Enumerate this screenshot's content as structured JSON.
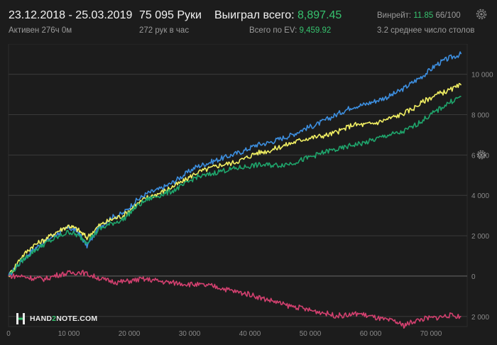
{
  "header": {
    "date_range": "23.12.2018 - 25.03.2019",
    "active": "Активен 276ч 0м",
    "hands": "75 095 Руки",
    "hands_per_hour": "272 рук в час",
    "won_label": "Выиграл всего:",
    "won_value": "8,897.45",
    "ev_label": "Всего по EV:",
    "ev_value": "9,459.92",
    "winrate_label": "Винрейт:",
    "winrate_value": "11.85",
    "winrate_suffix": "66/100",
    "tables": "3.2 среднее число столов"
  },
  "brand": {
    "pre": "HAND",
    "num": "2",
    "post": "NOTE.COM"
  },
  "icons": [
    "gear-icon",
    "gear-icon",
    "hand2note-logo-icon"
  ],
  "colors": {
    "blue": "#3d8fe0",
    "yellow": "#f2f063",
    "green": "#1fa56c",
    "pink": "#d2406f",
    "accent_green": "#36c26e"
  },
  "chart_data": {
    "type": "line",
    "title": "",
    "xlabel": "",
    "ylabel": "",
    "xlim": [
      0,
      76000
    ],
    "ylim": [
      -2500,
      11500
    ],
    "x_ticks": [
      0,
      10000,
      20000,
      30000,
      40000,
      50000,
      60000,
      70000
    ],
    "x_tick_labels": [
      "0",
      "10 000",
      "20 000",
      "30 000",
      "40 000",
      "50 000",
      "60 000",
      "70 000"
    ],
    "y_ticks": [
      -2000,
      0,
      2000,
      4000,
      6000,
      8000,
      10000
    ],
    "y_tick_labels": [
      "2 000",
      "0",
      "2 000",
      "4 000",
      "6 000",
      "8 000",
      "10 000"
    ],
    "grid": true,
    "series": [
      {
        "color": "#3d8fe0",
        "x": [
          0,
          2000,
          4000,
          6000,
          8000,
          10000,
          11500,
          13000,
          15000,
          17000,
          19000,
          21000,
          23000,
          25000,
          27000,
          29000,
          31000,
          33000,
          35000,
          37000,
          39000,
          41000,
          43000,
          45000,
          47000,
          49000,
          51000,
          53000,
          55000,
          57000,
          59000,
          61000,
          63000,
          65000,
          67000,
          69000,
          71000,
          73000,
          75000
        ],
        "y": [
          0,
          700,
          1300,
          1700,
          2100,
          2400,
          2200,
          1500,
          2400,
          2900,
          3100,
          3700,
          4100,
          4300,
          4600,
          5000,
          5400,
          5600,
          5800,
          6000,
          6200,
          6500,
          6600,
          6800,
          7000,
          7300,
          7500,
          7800,
          8100,
          8400,
          8500,
          8700,
          8900,
          9200,
          9600,
          10000,
          10500,
          10800,
          11000
        ]
      },
      {
        "color": "#f2f063",
        "x": [
          0,
          2000,
          4000,
          6000,
          8000,
          10000,
          11500,
          13000,
          15000,
          17000,
          19000,
          21000,
          23000,
          25000,
          27000,
          29000,
          31000,
          33000,
          35000,
          37000,
          39000,
          41000,
          43000,
          45000,
          47000,
          49000,
          51000,
          53000,
          55000,
          57000,
          59000,
          61000,
          63000,
          65000,
          67000,
          69000,
          71000,
          73000,
          75000
        ],
        "y": [
          0,
          900,
          1500,
          1800,
          2200,
          2500,
          2300,
          1900,
          2500,
          2800,
          3000,
          3500,
          3900,
          4100,
          4400,
          4700,
          5100,
          5300,
          5500,
          5600,
          5800,
          6100,
          6200,
          6400,
          6600,
          6800,
          6900,
          7000,
          7200,
          7500,
          7500,
          7600,
          7800,
          8000,
          8300,
          8700,
          9000,
          9200,
          9460
        ]
      },
      {
        "color": "#1fa56c",
        "x": [
          0,
          2000,
          4000,
          6000,
          8000,
          10000,
          11500,
          13000,
          15000,
          17000,
          19000,
          21000,
          23000,
          25000,
          27000,
          29000,
          31000,
          33000,
          35000,
          37000,
          39000,
          41000,
          43000,
          45000,
          47000,
          49000,
          51000,
          53000,
          55000,
          57000,
          59000,
          61000,
          63000,
          65000,
          67000,
          69000,
          71000,
          73000,
          75000
        ],
        "y": [
          0,
          700,
          1200,
          1600,
          1900,
          2200,
          2000,
          1700,
          2300,
          2600,
          2800,
          3400,
          3800,
          4000,
          4200,
          4500,
          4900,
          5000,
          5200,
          5300,
          5400,
          5500,
          5500,
          5500,
          5600,
          5800,
          6000,
          6200,
          6300,
          6500,
          6600,
          6800,
          7000,
          7100,
          7400,
          7800,
          8200,
          8600,
          8897
        ]
      },
      {
        "color": "#d2406f",
        "x": [
          0,
          2000,
          4000,
          6000,
          8000,
          10000,
          12000,
          14000,
          16000,
          18000,
          20000,
          22000,
          24000,
          26000,
          28000,
          30000,
          32000,
          34000,
          36000,
          38000,
          40000,
          42000,
          44000,
          46000,
          48000,
          50000,
          52000,
          54000,
          56000,
          58000,
          60000,
          62000,
          64000,
          65500,
          67000,
          69000,
          71000,
          73000,
          75000
        ],
        "y": [
          0,
          0,
          -100,
          -150,
          50,
          150,
          200,
          0,
          -200,
          -300,
          -250,
          -150,
          -200,
          -300,
          -350,
          -400,
          -450,
          -500,
          -650,
          -800,
          -900,
          -1100,
          -1250,
          -1450,
          -1550,
          -1700,
          -1800,
          -1950,
          -1950,
          -1850,
          -2000,
          -2150,
          -2250,
          -2450,
          -2250,
          -2100,
          -2050,
          -1950,
          -2000
        ]
      }
    ]
  }
}
